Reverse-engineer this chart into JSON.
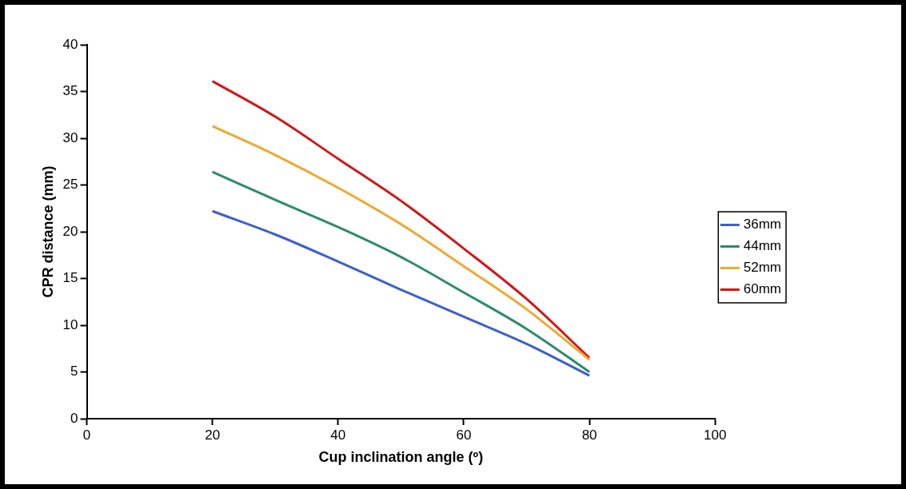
{
  "chart_data": {
    "type": "line",
    "xlabel": "Cup inclination angle (º)",
    "ylabel": "CPR distance (mm)",
    "x": [
      20,
      30,
      40,
      50,
      60,
      70,
      80
    ],
    "series": [
      {
        "name": "36mm",
        "color": "#3c5fd0",
        "values": [
          22.2,
          19.7,
          16.8,
          13.8,
          10.9,
          8.0,
          4.6
        ]
      },
      {
        "name": "44mm",
        "color": "#2e8b6a",
        "values": [
          26.4,
          23.4,
          20.5,
          17.3,
          13.5,
          9.6,
          5.0
        ]
      },
      {
        "name": "52mm",
        "color": "#f0a830",
        "values": [
          31.3,
          28.2,
          24.7,
          20.8,
          16.3,
          11.7,
          6.3
        ]
      },
      {
        "name": "60mm",
        "color": "#d01818",
        "values": [
          36.1,
          32.3,
          27.8,
          23.3,
          18.2,
          12.8,
          6.5
        ]
      }
    ],
    "xlim": [
      0,
      100
    ],
    "xticks": [
      0,
      20,
      40,
      60,
      80,
      100
    ],
    "ylim": [
      0,
      40
    ],
    "yticks": [
      0,
      5,
      10,
      15,
      20,
      25,
      30,
      35,
      40
    ],
    "grid": false,
    "legend": "right",
    "marker": "none",
    "line_style": "solid"
  }
}
